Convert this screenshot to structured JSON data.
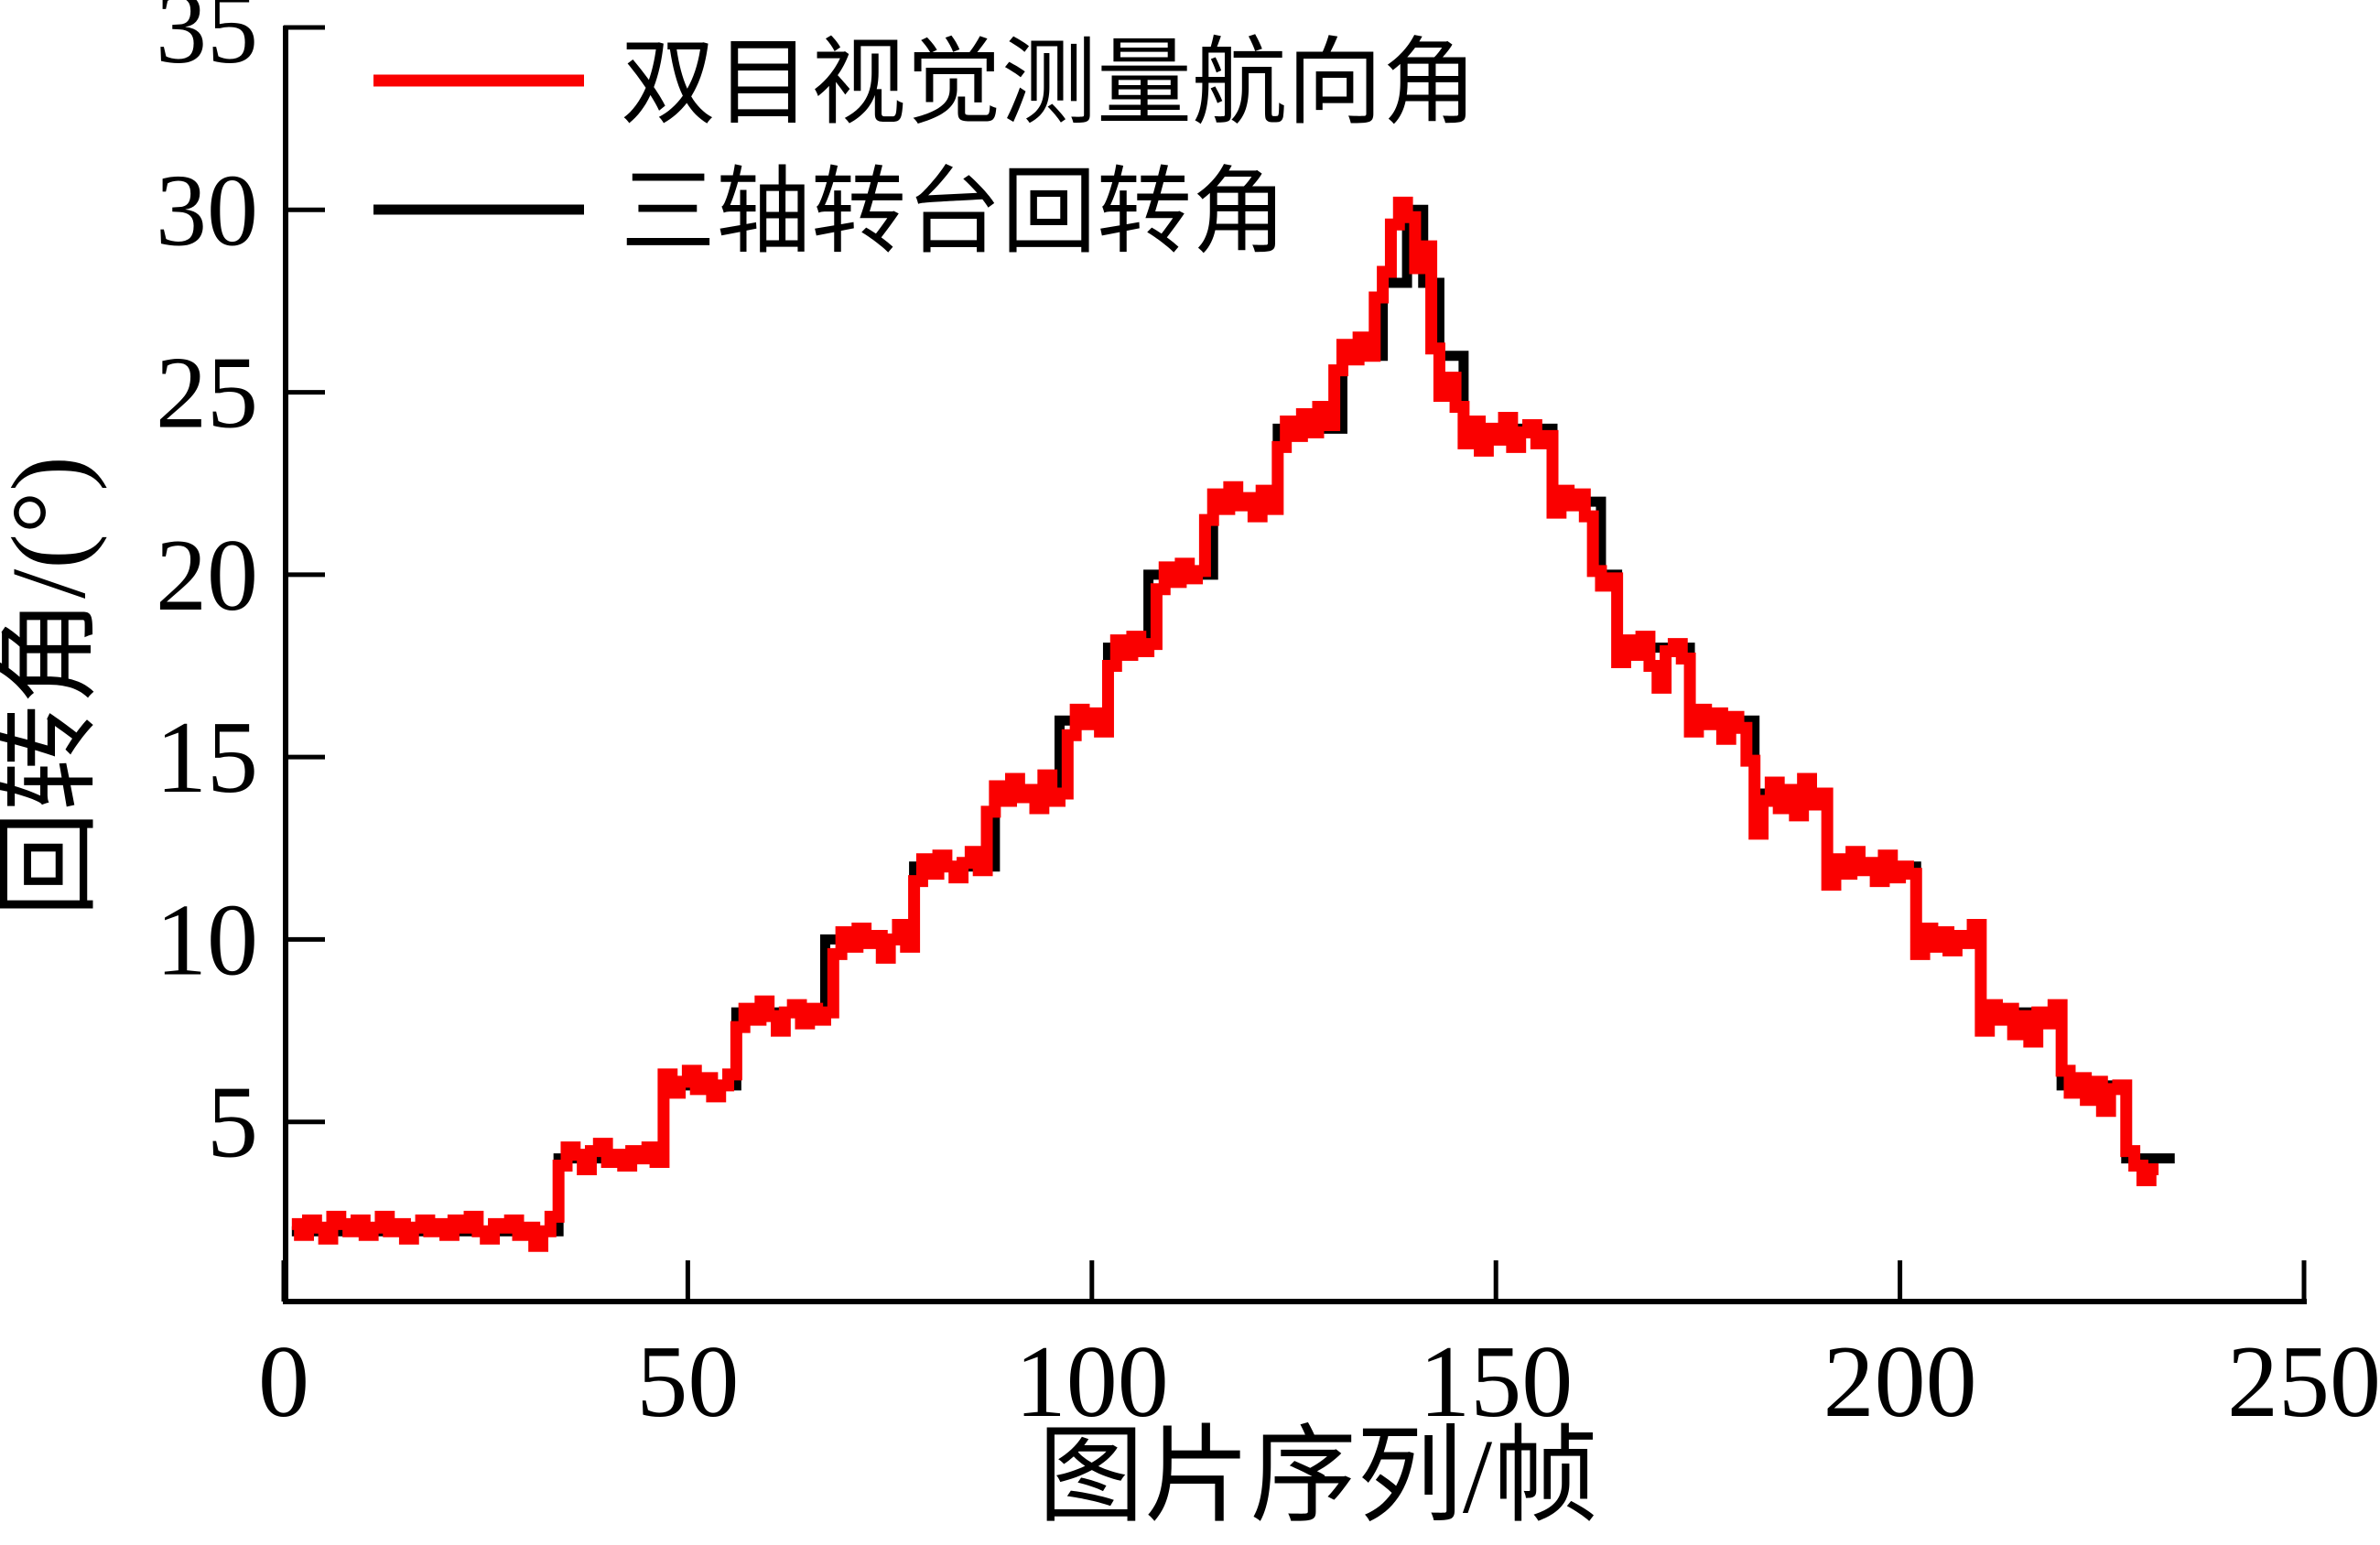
{
  "axes": {
    "x_label": "图片序列/帧",
    "y_label": "回转角/(°)",
    "x_ticks": [
      0,
      50,
      100,
      150,
      200,
      250
    ],
    "y_ticks": [
      5,
      10,
      15,
      20,
      25,
      30,
      35
    ]
  },
  "legend": {
    "items": [
      {
        "label": "双目视觉测量航向角",
        "color": "#fa0000"
      },
      {
        "label": "三轴转台回转角",
        "color": "#000000"
      }
    ]
  },
  "chart_data": {
    "type": "line",
    "title": "",
    "xlabel": "图片序列/帧",
    "ylabel": "回转角/(°)",
    "xlim": [
      0,
      250
    ],
    "ylim": [
      0,
      35
    ],
    "grid": false,
    "legend_position": "upper-left",
    "series": [
      {
        "name": "双目视觉测量航向角",
        "color": "#fa0000",
        "style": "step-per-frame",
        "x_start": 1,
        "x_step": 1,
        "values": [
          2.2,
          1.9,
          2.3,
          2.1,
          1.8,
          2.4,
          2.2,
          2.0,
          2.3,
          1.9,
          2.1,
          2.4,
          2.0,
          2.2,
          1.8,
          2.1,
          2.3,
          2.0,
          2.2,
          1.9,
          2.3,
          2.1,
          2.4,
          2.0,
          1.8,
          2.2,
          2.1,
          2.3,
          1.9,
          2.1,
          1.6,
          2.0,
          2.4,
          3.8,
          4.3,
          4.1,
          3.7,
          4.2,
          4.4,
          3.9,
          4.1,
          3.8,
          4.2,
          4.0,
          4.3,
          3.9,
          6.3,
          5.8,
          6.1,
          6.4,
          5.9,
          6.2,
          5.7,
          6.0,
          6.3,
          7.6,
          8.1,
          7.8,
          8.3,
          7.9,
          7.5,
          8.0,
          8.2,
          7.7,
          8.1,
          7.8,
          8.0,
          9.6,
          10.2,
          9.8,
          10.3,
          9.9,
          10.1,
          9.5,
          10.0,
          10.4,
          9.8,
          11.6,
          12.2,
          11.8,
          12.3,
          12.0,
          11.7,
          12.1,
          12.4,
          11.9,
          13.5,
          14.2,
          13.8,
          14.4,
          13.9,
          14.1,
          13.6,
          14.5,
          13.8,
          14.0,
          15.6,
          16.3,
          15.9,
          16.2,
          15.7,
          17.5,
          18.2,
          17.8,
          18.3,
          17.9,
          18.1,
          19.6,
          20.2,
          19.8,
          20.3,
          19.9,
          20.1,
          21.5,
          22.2,
          21.8,
          22.4,
          21.9,
          22.1,
          21.6,
          22.3,
          21.8,
          23.5,
          24.2,
          23.8,
          24.4,
          23.9,
          24.6,
          24.1,
          25.6,
          26.3,
          25.9,
          26.5,
          26.0,
          27.6,
          28.3,
          29.6,
          30.2,
          29.8,
          28.4,
          29.0,
          26.2,
          24.9,
          25.4,
          24.6,
          23.6,
          24.2,
          23.4,
          24.0,
          23.7,
          24.3,
          23.5,
          23.9,
          24.1,
          23.6,
          23.8,
          21.7,
          22.3,
          21.9,
          22.2,
          21.6,
          20.1,
          19.7,
          19.9,
          17.6,
          18.2,
          17.8,
          18.3,
          17.5,
          16.9,
          17.9,
          18.1,
          17.7,
          15.7,
          16.3,
          15.9,
          16.2,
          15.5,
          16.1,
          15.8,
          14.9,
          12.9,
          13.8,
          14.3,
          13.6,
          14.1,
          13.4,
          14.4,
          13.7,
          14.0,
          11.5,
          12.2,
          11.8,
          12.4,
          11.9,
          12.1,
          11.6,
          12.3,
          11.7,
          12.0,
          11.8,
          9.6,
          10.3,
          9.8,
          10.2,
          9.7,
          10.1,
          9.9,
          10.4,
          7.5,
          8.2,
          7.8,
          8.1,
          7.4,
          7.9,
          7.2,
          8.0,
          7.7,
          8.2,
          6.4,
          5.8,
          6.2,
          5.6,
          6.1,
          5.3,
          5.9,
          6.0,
          4.2,
          3.8,
          3.4,
          3.7
        ]
      },
      {
        "name": "三轴转台回转角",
        "color": "#000000",
        "style": "step-breakpoints",
        "breakpoints": [
          [
            1,
            2
          ],
          [
            34,
            4
          ],
          [
            47,
            6
          ],
          [
            56,
            8
          ],
          [
            67,
            10
          ],
          [
            78,
            12
          ],
          [
            88,
            14
          ],
          [
            96,
            16
          ],
          [
            102,
            18
          ],
          [
            107,
            20
          ],
          [
            115,
            22
          ],
          [
            123,
            24
          ],
          [
            131,
            26
          ],
          [
            136,
            28
          ],
          [
            139,
            30
          ],
          [
            141,
            28
          ],
          [
            143,
            26
          ],
          [
            146,
            24
          ],
          [
            157,
            22
          ],
          [
            163,
            20
          ],
          [
            165,
            18
          ],
          [
            174,
            16
          ],
          [
            182,
            14
          ],
          [
            191,
            12
          ],
          [
            202,
            10
          ],
          [
            210,
            8
          ],
          [
            220,
            6
          ],
          [
            228,
            4
          ],
          [
            234,
            4
          ]
        ]
      }
    ]
  }
}
